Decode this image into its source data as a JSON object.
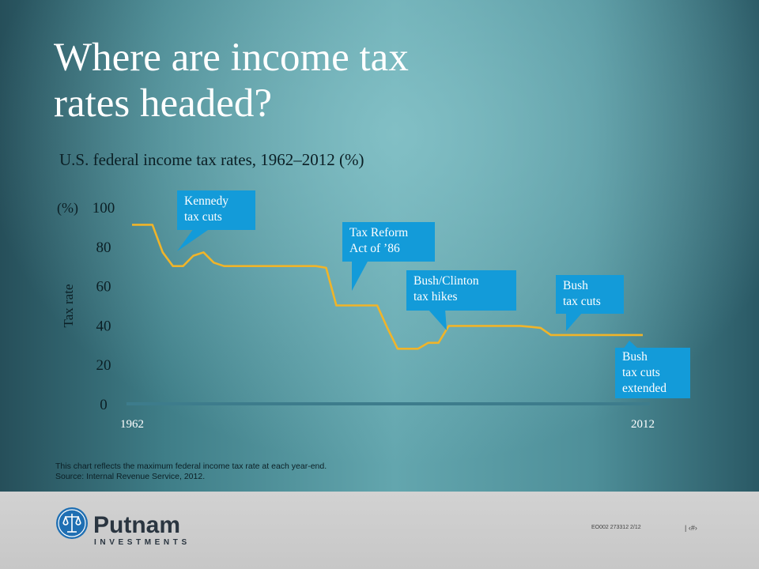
{
  "title_line1": "Where are income tax",
  "title_line2": "rates headed?",
  "subtitle": "U.S. federal income tax rates, 1962–2012 (%)",
  "note_line1": "This chart reflects the maximum federal income tax rate at each year-end.",
  "note_line2": "Source: Internal Revenue Service, 2012.",
  "footer": {
    "code": "EO002  273312  2/12",
    "page_number": "| ‹#›",
    "logo_word": "Putnam",
    "logo_sub": "INVESTMENTS"
  },
  "colors": {
    "line": "#f0b429",
    "callout": "#139bd9",
    "axis": "#3d7c8c"
  },
  "chart_data": {
    "type": "line",
    "title": "U.S. federal income tax rates, 1962–2012 (%)",
    "ylabel": "Tax rate",
    "yunit": "(%)",
    "ylim": [
      0,
      100
    ],
    "yticks": [
      0,
      20,
      40,
      60,
      80,
      100
    ],
    "xlim": [
      1962,
      2012
    ],
    "xticks": [
      "1962",
      "2012"
    ],
    "grid": false,
    "series": [
      {
        "x": [
          1962,
          1963,
          1964,
          1965,
          1966,
          1967,
          1968,
          1969,
          1970,
          1971,
          1972,
          1973,
          1974,
          1975,
          1976,
          1977,
          1978,
          1979,
          1980,
          1981,
          1982,
          1983,
          1984,
          1985,
          1986,
          1987,
          1988,
          1989,
          1990,
          1991,
          1992,
          1993,
          1994,
          1995,
          1996,
          1997,
          1998,
          1999,
          2000,
          2001,
          2002,
          2003,
          2004,
          2005,
          2006,
          2007,
          2008,
          2009,
          2010,
          2011,
          2012
        ],
        "values": [
          91,
          91,
          91,
          77,
          70,
          70,
          75.25,
          77,
          71.75,
          70,
          70,
          70,
          70,
          70,
          70,
          70,
          70,
          70,
          70,
          69.13,
          50,
          50,
          50,
          50,
          50,
          38.5,
          28,
          28,
          28,
          31,
          31,
          39.6,
          39.6,
          39.6,
          39.6,
          39.6,
          39.6,
          39.6,
          39.6,
          39.1,
          38.6,
          35,
          35,
          35,
          35,
          35,
          35,
          35,
          35,
          35,
          35
        ]
      }
    ],
    "annotations": [
      {
        "lines": [
          "Kennedy",
          "tax cuts"
        ]
      },
      {
        "lines": [
          "Tax Reform",
          "Act of ’86"
        ]
      },
      {
        "lines": [
          "Bush/Clinton",
          "tax hikes"
        ]
      },
      {
        "lines": [
          "Bush",
          "tax cuts"
        ]
      },
      {
        "lines": [
          "Bush",
          "tax cuts",
          "extended"
        ]
      }
    ]
  }
}
